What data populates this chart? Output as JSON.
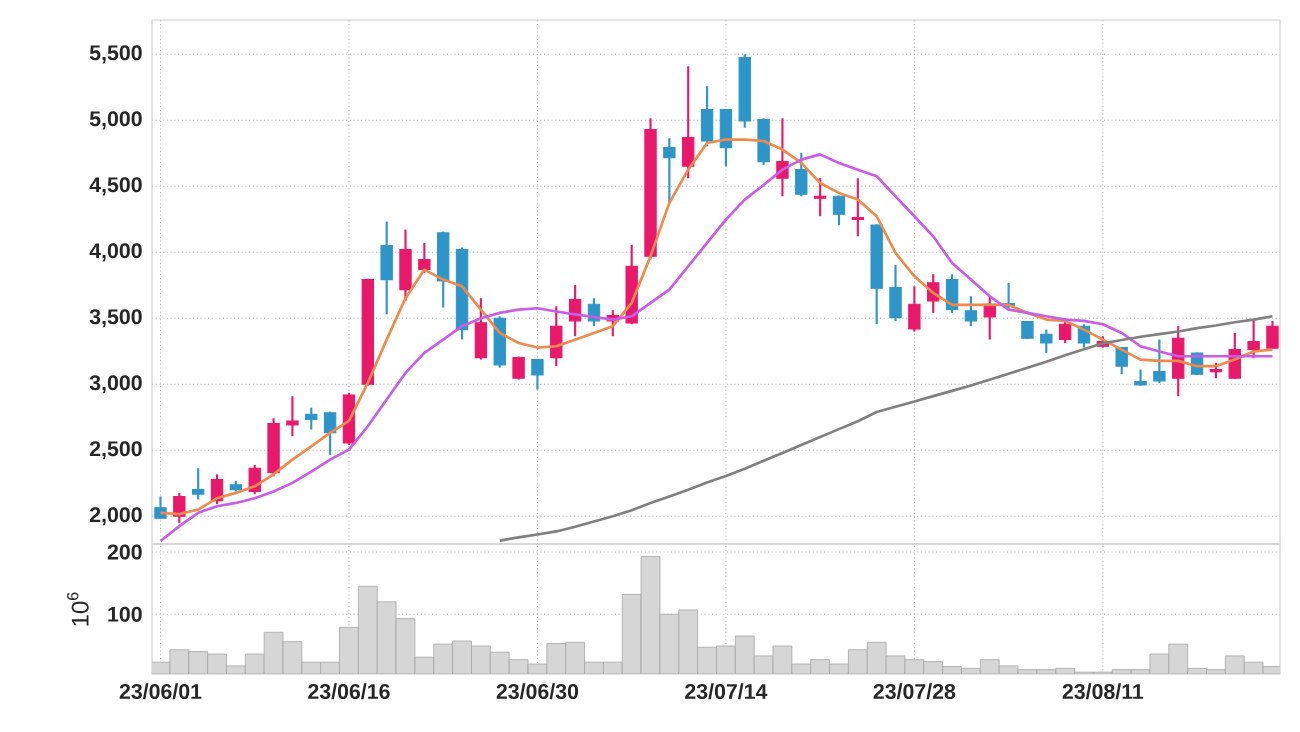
{
  "chart_data": [
    {
      "type": "candlestick",
      "categories": [
        null,
        null,
        null,
        null,
        null,
        null,
        null,
        null,
        null,
        null,
        null,
        null,
        null,
        null,
        null,
        null,
        null,
        null,
        null,
        null,
        null,
        null,
        null,
        null,
        null,
        null,
        null,
        null,
        null,
        null,
        null,
        null,
        null,
        null,
        null,
        null,
        null,
        null,
        null,
        null,
        null,
        null,
        null,
        null,
        null,
        null,
        null,
        null,
        null,
        null,
        null,
        null,
        null,
        null,
        null,
        null,
        null,
        null,
        null,
        null
      ],
      "ohlc": [
        [
          2065,
          2150,
          1980,
          1985
        ],
        [
          2000,
          2175,
          1950,
          2150
        ],
        [
          2202,
          2364,
          2127,
          2167
        ],
        [
          2117,
          2318,
          2092,
          2278
        ],
        [
          2238,
          2268,
          2187,
          2202
        ],
        [
          2187,
          2389,
          2167,
          2364
        ],
        [
          2329,
          2743,
          2303,
          2702
        ],
        [
          2692,
          2909,
          2606,
          2722
        ],
        [
          2773,
          2823,
          2657,
          2733
        ],
        [
          2783,
          2793,
          2465,
          2632
        ],
        [
          2556,
          2935,
          2541,
          2919
        ],
        [
          3000,
          3800,
          2990,
          3793
        ],
        [
          4051,
          4232,
          3530,
          3793
        ],
        [
          3717,
          4172,
          3632,
          4020
        ],
        [
          3869,
          4071,
          3844,
          3945
        ],
        [
          4147,
          4157,
          3581,
          3783
        ],
        [
          4020,
          4036,
          3339,
          3414
        ],
        [
          3202,
          3652,
          3187,
          3465
        ],
        [
          3500,
          3515,
          3126,
          3147
        ],
        [
          3046,
          3210,
          3036,
          3202
        ],
        [
          3187,
          3190,
          2960,
          3071
        ],
        [
          3202,
          3591,
          3137,
          3440
        ],
        [
          3480,
          3753,
          3364,
          3642
        ],
        [
          3606,
          3652,
          3440,
          3480
        ],
        [
          3480,
          3561,
          3364,
          3520
        ],
        [
          3465,
          4056,
          3455,
          3894
        ],
        [
          3970,
          5015,
          3945,
          4929
        ],
        [
          4793,
          4864,
          4374,
          4717
        ],
        [
          4652,
          5409,
          4561,
          4869
        ],
        [
          5081,
          5258,
          4803,
          4843
        ],
        [
          5081,
          5081,
          4652,
          4793
        ],
        [
          5475,
          5500,
          4944,
          4995
        ],
        [
          5005,
          5015,
          4662,
          4687
        ],
        [
          4561,
          5015,
          4424,
          4687
        ],
        [
          4626,
          4753,
          4424,
          4440
        ],
        [
          4409,
          4561,
          4273,
          4424
        ],
        [
          4424,
          4430,
          4207,
          4288
        ],
        [
          4248,
          4561,
          4121,
          4263
        ],
        [
          4207,
          4210,
          3455,
          3727
        ],
        [
          3732,
          3904,
          3480,
          3505
        ],
        [
          3419,
          3742,
          3399,
          3606
        ],
        [
          3632,
          3834,
          3541,
          3768
        ],
        [
          3793,
          3834,
          3541,
          3566
        ],
        [
          3556,
          3667,
          3440,
          3480
        ],
        [
          3510,
          3667,
          3339,
          3606
        ],
        [
          3611,
          3768,
          3566,
          3591
        ],
        [
          3475,
          3480,
          3344,
          3349
        ],
        [
          3379,
          3414,
          3237,
          3313
        ],
        [
          3339,
          3500,
          3313,
          3455
        ],
        [
          3440,
          3455,
          3278,
          3313
        ],
        [
          3288,
          3364,
          3278,
          3323
        ],
        [
          3278,
          3280,
          3076,
          3137
        ],
        [
          3020,
          3111,
          2990,
          2995
        ],
        [
          3096,
          3339,
          3010,
          3025
        ],
        [
          3046,
          3440,
          2909,
          3349
        ],
        [
          3237,
          3240,
          3070,
          3076
        ],
        [
          3096,
          3162,
          3046,
          3111
        ],
        [
          3046,
          3389,
          3040,
          3263
        ],
        [
          3263,
          3480,
          3197,
          3323
        ],
        [
          3273,
          3480,
          3270,
          3440
        ]
      ],
      "series": [
        {
          "type": "line",
          "color": "#f08a4b",
          "values": [
            2026,
            2016,
            2051,
            2137,
            2177,
            2227,
            2318,
            2429,
            2530,
            2632,
            2722,
            3010,
            3338,
            3652,
            3869,
            3793,
            3742,
            3566,
            3389,
            3313,
            3278,
            3288,
            3338,
            3389,
            3440,
            3616,
            3970,
            4374,
            4626,
            4828,
            4854,
            4854,
            4843,
            4778,
            4677,
            4525,
            4450,
            4399,
            4273,
            3995,
            3818,
            3692,
            3601,
            3601,
            3601,
            3601,
            3541,
            3490,
            3480,
            3414,
            3338,
            3263,
            3187,
            3177,
            3177,
            3137,
            3137,
            3187,
            3248,
            3263
          ]
        },
        {
          "type": "line",
          "color": "#c95de8",
          "values": [
            1813,
            1925,
            2026,
            2076,
            2101,
            2137,
            2187,
            2253,
            2338,
            2429,
            2505,
            2682,
            2884,
            3086,
            3238,
            3338,
            3440,
            3500,
            3541,
            3566,
            3576,
            3551,
            3530,
            3510,
            3490,
            3515,
            3616,
            3717,
            3894,
            4071,
            4248,
            4399,
            4510,
            4626,
            4702,
            4742,
            4677,
            4626,
            4576,
            4424,
            4273,
            4121,
            3919,
            3793,
            3667,
            3566,
            3541,
            3515,
            3490,
            3480,
            3455,
            3389,
            3288,
            3248,
            3212,
            3212,
            3212,
            3212,
            3212,
            3212
          ]
        },
        {
          "type": "line",
          "color": "#808080",
          "values": [
            null,
            null,
            null,
            null,
            null,
            null,
            null,
            null,
            null,
            null,
            null,
            null,
            null,
            null,
            null,
            null,
            null,
            null,
            1815,
            1840,
            1862,
            1885,
            1920,
            1960,
            2000,
            2045,
            2100,
            2150,
            2200,
            2255,
            2305,
            2360,
            2420,
            2480,
            2540,
            2600,
            2660,
            2720,
            2790,
            2830,
            2870,
            2910,
            2950,
            2990,
            3035,
            3080,
            3125,
            3170,
            3220,
            3265,
            3310,
            3335,
            3360,
            3380,
            3400,
            3425,
            3445,
            3470,
            3490,
            3515
          ]
        }
      ],
      "ylim": [
        1790,
        5760
      ],
      "yticks": [
        {
          "value": 2000,
          "label": "2,000"
        },
        {
          "value": 2500,
          "label": "2,500"
        },
        {
          "value": 3000,
          "label": "3,000"
        },
        {
          "value": 3500,
          "label": "3,500"
        },
        {
          "value": 4000,
          "label": "4,000"
        },
        {
          "value": 4500,
          "label": "4,500"
        },
        {
          "value": 5000,
          "label": "5,000"
        },
        {
          "value": 5500,
          "label": "5,500"
        }
      ],
      "grid": true,
      "tick_labels": "y",
      "marker": "none"
    },
    {
      "type": "bar",
      "categories": [
        "23/06/01",
        null,
        null,
        null,
        null,
        null,
        null,
        null,
        null,
        null,
        "23/06/16",
        null,
        null,
        null,
        null,
        null,
        null,
        null,
        null,
        null,
        "23/06/30",
        null,
        null,
        null,
        null,
        null,
        null,
        null,
        null,
        null,
        "23/07/14",
        null,
        null,
        null,
        null,
        null,
        null,
        null,
        null,
        null,
        "23/07/28",
        null,
        null,
        null,
        null,
        null,
        null,
        null,
        null,
        null,
        "23/08/11",
        null,
        null,
        null,
        null,
        null,
        null,
        null,
        null,
        null
      ],
      "values": [
        23,
        43,
        40,
        36,
        17,
        36,
        71,
        56,
        23,
        23,
        79,
        145,
        120,
        93,
        31,
        52,
        57,
        49,
        39,
        27,
        20,
        53,
        55,
        23,
        23,
        132,
        193,
        100,
        107,
        47,
        49,
        65,
        33,
        49,
        20,
        27,
        20,
        43,
        55,
        33,
        27,
        24,
        16,
        13,
        27,
        17,
        11,
        11,
        13,
        7,
        7,
        11,
        11,
        36,
        52,
        13,
        11,
        33,
        23,
        16
      ],
      "color": "#d6d6d6",
      "ylabel": "10$^{6}$",
      "ylim": [
        4,
        213
      ],
      "yticks": [
        100,
        200
      ],
      "grid": true
    }
  ]
}
